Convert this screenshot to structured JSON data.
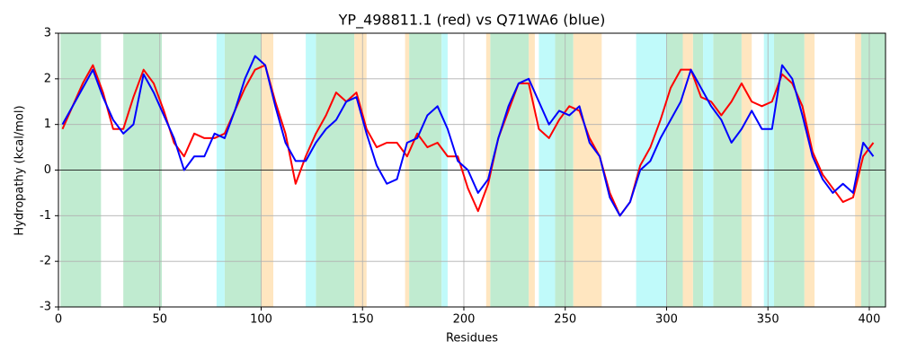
{
  "chart_data": {
    "type": "line",
    "title": "YP_498811.1 (red) vs Q71WA6 (blue)",
    "xlabel": "Residues",
    "ylabel": "Hydropathy (kcal/mol)",
    "xlim": [
      0,
      408
    ],
    "ylim": [
      -3,
      3
    ],
    "xticks": [
      0,
      50,
      100,
      150,
      200,
      250,
      300,
      350,
      400
    ],
    "yticks": [
      -3,
      -2,
      -1,
      0,
      1,
      2,
      3
    ],
    "grid": true,
    "hline": 0,
    "bands": [
      {
        "x0": 1,
        "x1": 21,
        "color": "#c0ebd0"
      },
      {
        "x0": 32,
        "x1": 51,
        "color": "#c0ebd0"
      },
      {
        "x0": 82,
        "x1": 100,
        "color": "#c0ebd0"
      },
      {
        "x0": 127,
        "x1": 146,
        "color": "#c0ebd0"
      },
      {
        "x0": 173,
        "x1": 189,
        "color": "#c0ebd0"
      },
      {
        "x0": 213,
        "x1": 232,
        "color": "#c0ebd0"
      },
      {
        "x0": 245,
        "x1": 254,
        "color": "#c0ebd0"
      },
      {
        "x0": 300,
        "x1": 308,
        "color": "#c0ebd0"
      },
      {
        "x0": 313,
        "x1": 318,
        "color": "#c0ebd0"
      },
      {
        "x0": 323,
        "x1": 337,
        "color": "#c0ebd0"
      },
      {
        "x0": 353,
        "x1": 368,
        "color": "#c0ebd0"
      },
      {
        "x0": 396,
        "x1": 408,
        "color": "#c0ebd0"
      },
      {
        "x0": 78,
        "x1": 82,
        "color": "#c0fafa"
      },
      {
        "x0": 122,
        "x1": 127,
        "color": "#c0fafa"
      },
      {
        "x0": 189,
        "x1": 192,
        "color": "#c0fafa"
      },
      {
        "x0": 237,
        "x1": 245,
        "color": "#c0fafa"
      },
      {
        "x0": 285,
        "x1": 300,
        "color": "#c0fafa"
      },
      {
        "x0": 318,
        "x1": 323,
        "color": "#c0fafa"
      },
      {
        "x0": 348,
        "x1": 353,
        "color": "#c0fafa"
      },
      {
        "x0": 100,
        "x1": 106,
        "color": "#ffe6c0"
      },
      {
        "x0": 146,
        "x1": 152,
        "color": "#ffe6c0"
      },
      {
        "x0": 171,
        "x1": 173,
        "color": "#ffe6c0"
      },
      {
        "x0": 211,
        "x1": 213,
        "color": "#ffe6c0"
      },
      {
        "x0": 232,
        "x1": 235,
        "color": "#ffe6c0"
      },
      {
        "x0": 254,
        "x1": 268,
        "color": "#ffe6c0"
      },
      {
        "x0": 308,
        "x1": 313,
        "color": "#ffe6c0"
      },
      {
        "x0": 337,
        "x1": 342,
        "color": "#ffe6c0"
      },
      {
        "x0": 368,
        "x1": 373,
        "color": "#ffe6c0"
      },
      {
        "x0": 393,
        "x1": 396,
        "color": "#ffe6c0"
      }
    ],
    "x": [
      2,
      7,
      12,
      17,
      22,
      27,
      32,
      37,
      42,
      47,
      52,
      57,
      62,
      67,
      72,
      77,
      82,
      87,
      92,
      97,
      102,
      107,
      112,
      117,
      122,
      127,
      132,
      137,
      142,
      147,
      152,
      157,
      162,
      167,
      172,
      177,
      182,
      187,
      192,
      197,
      202,
      207,
      212,
      217,
      222,
      227,
      232,
      237,
      242,
      247,
      252,
      257,
      262,
      267,
      272,
      277,
      282,
      287,
      292,
      297,
      302,
      307,
      312,
      317,
      322,
      327,
      332,
      337,
      342,
      347,
      352,
      357,
      362,
      367,
      372,
      377,
      382,
      387,
      392,
      397,
      402
    ],
    "series": [
      {
        "color": "#ff0000",
        "values": [
          0.9,
          1.4,
          1.9,
          2.3,
          1.7,
          0.9,
          0.9,
          1.6,
          2.2,
          1.9,
          1.3,
          0.6,
          0.3,
          0.8,
          0.7,
          0.7,
          0.8,
          1.3,
          1.8,
          2.2,
          2.3,
          1.5,
          0.8,
          -0.3,
          0.3,
          0.8,
          1.2,
          1.7,
          1.5,
          1.7,
          0.9,
          0.5,
          0.6,
          0.6,
          0.3,
          0.8,
          0.5,
          0.6,
          0.3,
          0.3,
          -0.4,
          -0.9,
          -0.3,
          0.7,
          1.3,
          1.9,
          1.9,
          0.9,
          0.7,
          1.1,
          1.4,
          1.3,
          0.7,
          0.3,
          -0.5,
          -1.0,
          -0.7,
          0.1,
          0.5,
          1.1,
          1.8,
          2.2,
          2.2,
          1.6,
          1.5,
          1.2,
          1.5,
          1.9,
          1.5,
          1.4,
          1.5,
          2.1,
          1.9,
          1.4,
          0.4,
          -0.1,
          -0.4,
          -0.7,
          -0.6,
          0.3,
          0.6
        ]
      },
      {
        "color": "#0000ff",
        "values": [
          1.0,
          1.4,
          1.8,
          2.2,
          1.6,
          1.1,
          0.8,
          1.0,
          2.1,
          1.7,
          1.2,
          0.7,
          0.0,
          0.3,
          0.3,
          0.8,
          0.7,
          1.3,
          2.0,
          2.5,
          2.3,
          1.4,
          0.6,
          0.2,
          0.2,
          0.6,
          0.9,
          1.1,
          1.5,
          1.6,
          0.8,
          0.1,
          -0.3,
          -0.2,
          0.6,
          0.7,
          1.2,
          1.4,
          0.9,
          0.2,
          0.0,
          -0.5,
          -0.2,
          0.7,
          1.4,
          1.9,
          2.0,
          1.5,
          1.0,
          1.3,
          1.2,
          1.4,
          0.6,
          0.3,
          -0.6,
          -1.0,
          -0.7,
          0.0,
          0.2,
          0.7,
          1.1,
          1.5,
          2.2,
          1.8,
          1.4,
          1.1,
          0.6,
          0.9,
          1.3,
          0.9,
          0.9,
          2.3,
          2.0,
          1.2,
          0.3,
          -0.2,
          -0.5,
          -0.3,
          -0.5,
          0.6,
          0.3
        ]
      }
    ]
  }
}
